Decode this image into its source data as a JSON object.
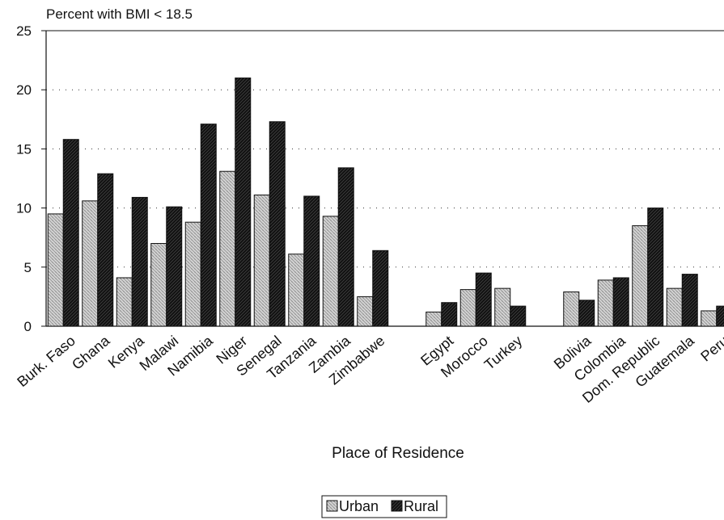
{
  "chart_data": {
    "type": "bar",
    "y_axis_title": "Percent with BMI < 18.5",
    "xlabel": "Place of Residence",
    "ylabel": "",
    "ylim": [
      0,
      25
    ],
    "yticks": [
      0,
      5,
      10,
      15,
      20,
      25
    ],
    "grid": "horizontal dotted",
    "legend_placement": "bottom-center",
    "categories": [
      "Burk. Faso",
      "Ghana",
      "Kenya",
      "Malawi",
      "Namibia",
      "Niger",
      "Senegal",
      "Tanzania",
      "Zambia",
      "Zimbabwe",
      "Egypt",
      "Morocco",
      "Turkey",
      "Bolivia",
      "Colombia",
      "Dom. Republic",
      "Guatemala",
      "Peru"
    ],
    "groups": [
      [
        "Burk. Faso",
        "Ghana",
        "Kenya",
        "Malawi",
        "Namibia",
        "Niger",
        "Senegal",
        "Tanzania",
        "Zambia",
        "Zimbabwe"
      ],
      [
        "Egypt",
        "Morocco",
        "Turkey"
      ],
      [
        "Bolivia",
        "Colombia",
        "Dom. Republic",
        "Guatemala",
        "Peru"
      ]
    ],
    "series": [
      {
        "name": "Urban",
        "color": "#cfcfcf",
        "values": [
          9.5,
          10.6,
          4.1,
          7.0,
          8.8,
          13.1,
          11.1,
          6.1,
          9.3,
          2.5,
          1.2,
          3.1,
          3.2,
          2.9,
          3.9,
          8.5,
          3.2,
          1.3
        ]
      },
      {
        "name": "Rural",
        "color": "#111111",
        "values": [
          15.8,
          12.9,
          10.9,
          10.1,
          17.1,
          21.0,
          17.3,
          11.0,
          13.4,
          6.4,
          2.0,
          4.5,
          1.7,
          2.2,
          4.1,
          10.0,
          4.4,
          1.7
        ]
      }
    ]
  }
}
